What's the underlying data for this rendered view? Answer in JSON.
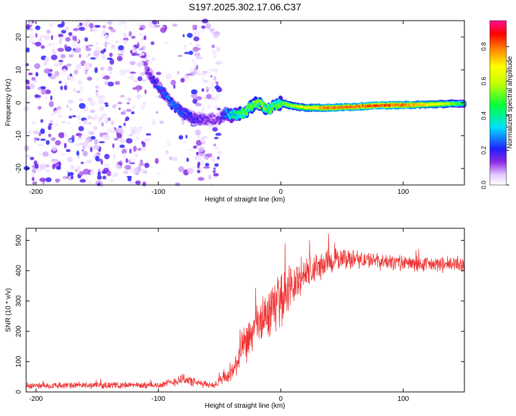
{
  "title": "S197.2025.302.17.06.C37",
  "colors": {
    "background": "#ffffff",
    "frame": "#000000",
    "snr_line": "#ee3333",
    "dots_purple": "#8a2be2"
  },
  "chart_data": [
    {
      "type": "heatmap",
      "name": "spectrogram",
      "xlabel": "Height of straight line (km)",
      "ylabel": "Frequency (Hz)",
      "xlim": [
        -208,
        150
      ],
      "ylim": [
        -25,
        25
      ],
      "xticks": [
        -200,
        -100,
        0,
        100
      ],
      "yticks": [
        20,
        10,
        0,
        -10,
        -20
      ],
      "noise_regions": [
        {
          "x_range": [
            -208,
            -110
          ],
          "y_range": [
            -25,
            25
          ],
          "level": "medium"
        },
        {
          "x_range": [
            -110,
            -75
          ],
          "y_range": [
            -25,
            25
          ],
          "level": "sparse"
        },
        {
          "x_range": [
            -75,
            -50
          ],
          "y_range": [
            -25,
            25
          ],
          "level": "medium"
        }
      ],
      "ridge": {
        "x": [
          -110,
          -100,
          -90,
          -80,
          -70,
          -60,
          -50,
          -45,
          -40,
          -30,
          -20,
          -10,
          0,
          10,
          20,
          40,
          60,
          80,
          100,
          120,
          140,
          150
        ],
        "y": [
          10,
          5,
          0,
          -3,
          -5,
          -5,
          -5,
          -3,
          -4,
          -3,
          0,
          -2,
          0,
          -1,
          -1.5,
          -1.5,
          -1.2,
          -0.8,
          -0.7,
          -0.5,
          -0.3,
          -0.2
        ],
        "amplitude": [
          0.15,
          0.25,
          0.3,
          0.25,
          0.2,
          0.15,
          0.15,
          0.3,
          0.45,
          0.55,
          0.6,
          0.55,
          0.55,
          0.6,
          0.7,
          0.85,
          0.85,
          0.9,
          0.85,
          0.75,
          0.6,
          0.45
        ]
      },
      "colorbar": {
        "label": "Normalized spectral amplitude",
        "range": [
          0.0,
          0.95
        ],
        "ticks": [
          "0.0",
          "0.2",
          "0.4",
          "0.6",
          "0.8"
        ],
        "tick_values": [
          0.0,
          0.2,
          0.4,
          0.6,
          0.8
        ]
      }
    },
    {
      "type": "line",
      "name": "snr",
      "xlabel": "Height of straight line (km)",
      "ylabel": "SNR (10 * v/v)",
      "xlim": [
        -208,
        150
      ],
      "ylim": [
        0,
        540
      ],
      "xticks": [
        -200,
        -100,
        0,
        100
      ],
      "yticks": [
        0,
        100,
        200,
        300,
        400,
        500
      ],
      "envelope": {
        "x": [
          -208,
          -150,
          -100,
          -90,
          -80,
          -70,
          -55,
          -40,
          -30,
          -20,
          -10,
          0,
          10,
          20,
          30,
          40,
          50,
          60,
          80,
          100,
          120,
          150
        ],
        "mean": [
          20,
          22,
          22,
          30,
          45,
          30,
          22,
          60,
          150,
          210,
          260,
          310,
          350,
          390,
          410,
          430,
          440,
          440,
          430,
          425,
          420,
          420
        ],
        "spread": [
          10,
          10,
          10,
          14,
          20,
          14,
          10,
          30,
          60,
          70,
          80,
          85,
          70,
          60,
          50,
          40,
          35,
          30,
          25,
          25,
          25,
          25
        ]
      }
    }
  ]
}
